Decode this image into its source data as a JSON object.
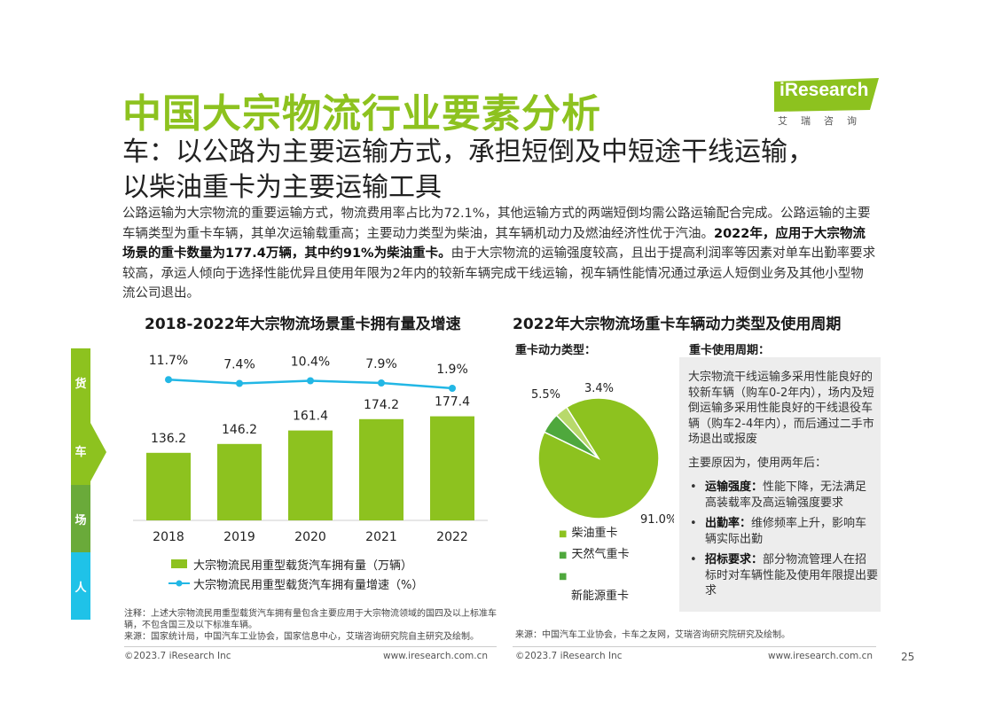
{
  "page": {
    "title": "中国大宗物流行业要素分析",
    "subtitle_line1": "车：以公路为主要运输方式，承担短倒及中短途干线运输，",
    "subtitle_line2": "以柴油重卡为主要运输工具",
    "body_p1": "公路运输为大宗物流的重要运输方式，物流费用率占比为72.1%，其他运输方式的两端短倒均需公路运输配合完成。公路运输的主要车辆类型为重卡车辆，其单次运输载重高；主要动力类型为柴油，其车辆机动力及燃油经济性优于汽油。",
    "body_bold": "2022年，应用于大宗物流场景的重卡数量为177.4万辆，其中约91%为柴油重卡。",
    "body_p2": "由于大宗物流的运输强度较高，且出于提高利润率等因素对单车出勤率要求较高，承运人倾向于选择性能优异且使用年限为2年内的较新车辆完成干线运输，视车辆性能情况通过承运人短倒业务及其他小型物流公司退出。",
    "page_number": "25"
  },
  "logo": {
    "text": "iResearch",
    "sub": "艾瑞咨询"
  },
  "side_tabs": [
    {
      "label": "货",
      "color": "#8dc21f"
    },
    {
      "label": "车",
      "color": "#8dc21f"
    },
    {
      "label": "场",
      "color": "#6aaa3a"
    },
    {
      "label": "人",
      "color": "#1fc2e8"
    }
  ],
  "colors": {
    "bar": "#8dc21f",
    "line": "#22b7e5",
    "pie_diesel": "#8dc21f",
    "pie_gas": "#4fa83d",
    "pie_ev": "#b8d96b",
    "title_green": "#8dc21f"
  },
  "left_chart": {
    "title": "2018-2022年大宗物流场景重卡拥有量及增速",
    "note": "注释：上述大宗物流民用重型载货汽车拥有量包含主要应用于大宗物流领域的国四及以上标准车辆，不包含国三及以下标准车辆。",
    "source": "来源：国家统计局，中国汽车工业协会，国家信息中心，艾瑞咨询研究院自主研究及绘制。"
  },
  "right_chart": {
    "title": "2022年大宗物流场重卡车辆动力类型及使用周期",
    "power_label": "重卡动力类型：",
    "cycle_label": "重卡使用周期：",
    "cycle_para": "大宗物流干线运输多采用性能良好的较新车辆（购车0-2年内），场内及短倒运输多采用性能良好的干线退役车辆（购车2-4年内），而后通过二手市场退出或报废",
    "reason_intro": "主要原因为，使用两年后：",
    "reasons": [
      {
        "bold": "运输强度：",
        "text": "性能下降，无法满足高装载率及高运输强度要求"
      },
      {
        "bold": "出勤率：",
        "text": "维修频率上升，影响车辆实际出勤"
      },
      {
        "bold": "招标要求：",
        "text": "部分物流管理人在招标时对车辆性能及使用年限提出要求"
      }
    ],
    "source": "来源：中国汽车工业协会，卡车之友网，艾瑞咨询研究院研究及绘制。"
  },
  "footer": {
    "left_copyright": "©2023.7 iResearch Inc",
    "left_url": "www.iresearch.com.cn",
    "right_copyright": "©2023.7 iResearch Inc",
    "right_url": "www.iresearch.com.cn"
  },
  "chart_data": [
    {
      "type": "bar",
      "categories": [
        "2018",
        "2019",
        "2020",
        "2021",
        "2022"
      ],
      "series": [
        {
          "name": "大宗物流民用重型载货汽车拥有量（万辆）",
          "kind": "bar",
          "values": [
            136.2,
            146.2,
            161.4,
            174.2,
            177.4
          ]
        },
        {
          "name": "大宗物流民用重型载货汽车拥有量增速（%）",
          "kind": "line",
          "values": [
            11.7,
            7.4,
            10.4,
            7.9,
            1.9
          ],
          "labels": [
            "11.7%",
            "7.4%",
            "10.4%",
            "7.9%",
            "1.9%"
          ]
        }
      ],
      "title": "2018-2022年大宗物流场景重卡拥有量及增速",
      "legend": "bottom",
      "grid": false
    },
    {
      "type": "pie",
      "labels": [
        "柴油重卡",
        "天然气重卡",
        "新能源重卡"
      ],
      "values": [
        91.0,
        5.5,
        3.4
      ],
      "value_labels": [
        "91.0%",
        "5.5%",
        "3.4%"
      ],
      "legend": "bottom"
    }
  ]
}
